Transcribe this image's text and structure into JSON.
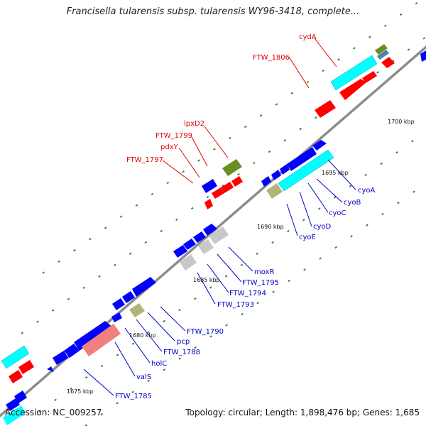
{
  "title": "Francisella tularensis subsp. tularensis WY96-3418, complete...",
  "footer": {
    "accession": "Accession: NC_009257",
    "topology": "Topology: circular; Length: 1,898,476 bp; Genes: 1,685"
  },
  "colors": {
    "backbone": "#8c8c8c",
    "forward_cds": "#ff0000",
    "reverse_cds": "#0000ff",
    "cyan_block": "#00ffff",
    "gray_block": "#c8c8c8",
    "olive_block": "#b4b478",
    "green_block": "#6b8e23",
    "pink_block": "#f08080",
    "tick": "#2e8b2e",
    "label_red": "#e00000",
    "label_blue": "#0000cc"
  },
  "kbp_labels": [
    "1675 kbp",
    "1680 kbp",
    "1685 kbp",
    "1690 kbp",
    "1695 kbp",
    "1700 kbp"
  ],
  "red_labels": [
    "cydA",
    "FTW_1806",
    "lpxD2",
    "FTW_1799",
    "pdxY",
    "FTW_1797"
  ],
  "blue_labels": [
    "cyoA",
    "cyoB",
    "cyoC",
    "cyoD",
    "cyoE",
    "moxR",
    "FTW_1795",
    "FTW_1794",
    "FTW_1793",
    "FTW_1790",
    "pcp",
    "FTW_1788",
    "holC",
    "valS",
    "FTW_1785"
  ]
}
